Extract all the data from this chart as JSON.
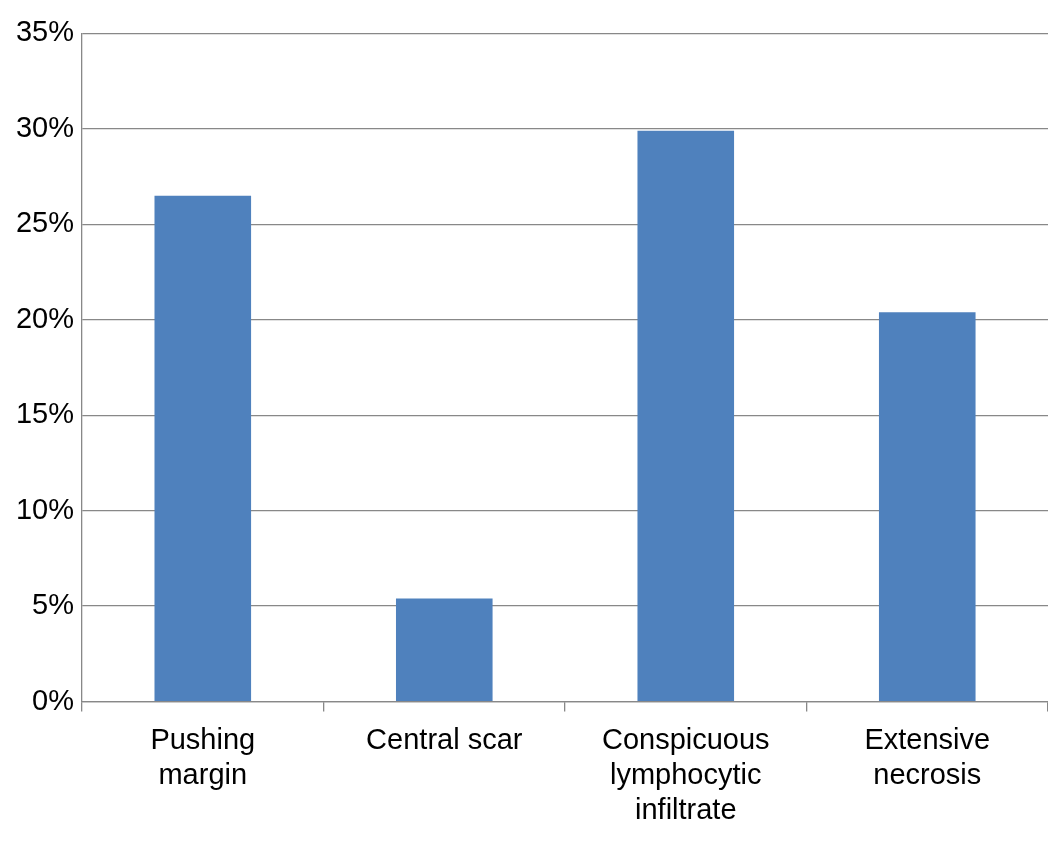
{
  "chart_data": {
    "type": "bar",
    "categories": [
      "Pushing margin",
      "Central scar",
      "Conspicuous lymphocytic infiltrate",
      "Extensive necrosis"
    ],
    "values": [
      26.5,
      5.4,
      29.9,
      20.4
    ],
    "color": "#4f81bd",
    "ylim": [
      0,
      35
    ],
    "yticks": [
      {
        "value": 0,
        "label": "0%"
      },
      {
        "value": 5,
        "label": "5%"
      },
      {
        "value": 10,
        "label": "10%"
      },
      {
        "value": 15,
        "label": "15%"
      },
      {
        "value": 20,
        "label": "20%"
      },
      {
        "value": 25,
        "label": "25%"
      },
      {
        "value": 30,
        "label": "30%"
      },
      {
        "value": 35,
        "label": "35%"
      }
    ],
    "grid": "y",
    "legend": false
  }
}
